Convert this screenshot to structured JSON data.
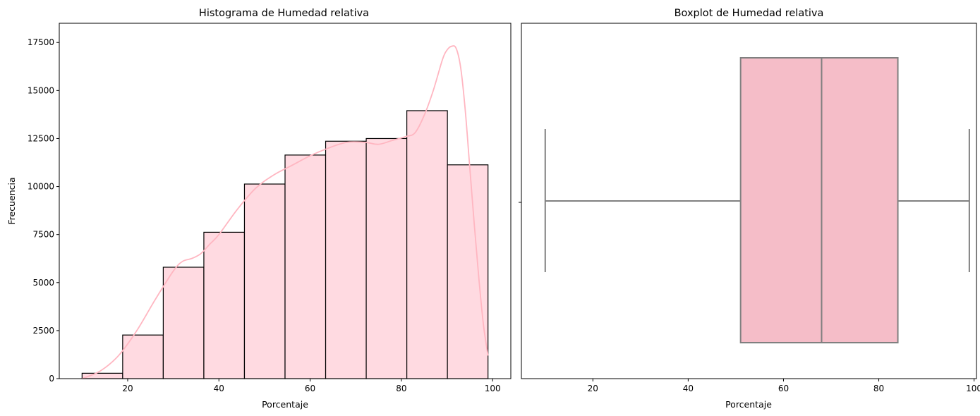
{
  "chart_data": [
    {
      "type": "bar",
      "subtype": "histogram-with-kde",
      "title": "Histograma de Humedad relativa",
      "xlabel": "Porcentaje",
      "ylabel": "Frecuencia",
      "xlim": [
        5,
        104
      ],
      "ylim": [
        0,
        18500
      ],
      "xticks": [
        20,
        40,
        60,
        80,
        100
      ],
      "yticks": [
        0,
        2500,
        5000,
        7500,
        10000,
        12500,
        15000,
        17500
      ],
      "bin_edges": [
        10,
        18.9,
        27.8,
        36.7,
        45.6,
        54.5,
        63.4,
        72.3,
        81.2,
        90.1,
        99
      ],
      "values": [
        280,
        2270,
        5800,
        7620,
        10130,
        11640,
        12360,
        12500,
        13950,
        11130
      ],
      "bar_color": "#ffdae1",
      "edge_color": "#000000",
      "kde_color": "#ffb6c1",
      "kde": {
        "x": [
          10,
          14,
          18,
          22,
          26,
          30,
          32,
          34,
          36,
          38,
          40,
          44,
          48,
          52,
          56,
          60,
          64,
          68,
          72,
          75,
          78,
          81,
          83,
          85,
          87,
          89,
          90,
          91,
          92,
          93,
          94,
          95,
          96,
          97,
          98,
          99
        ],
        "y": [
          0,
          400,
          1200,
          2500,
          4100,
          5600,
          6100,
          6250,
          6500,
          7000,
          7500,
          8800,
          9900,
          10600,
          11100,
          11600,
          12000,
          12300,
          12300,
          12200,
          12400,
          12600,
          12800,
          13700,
          15000,
          16600,
          17100,
          17300,
          17200,
          16200,
          14000,
          11000,
          8000,
          5200,
          2800,
          1200
        ]
      }
    },
    {
      "type": "box",
      "title": "Boxplot de Humedad relativa",
      "xlabel": "Porcentaje",
      "xlim": [
        5,
        100.5
      ],
      "xticks": [
        20,
        40,
        60,
        80,
        100
      ],
      "whisker_low": 10,
      "q1": 51,
      "median": 68,
      "q3": 84,
      "whisker_high": 99,
      "box_color": "#f5bdc8",
      "line_color": "#808080"
    }
  ]
}
